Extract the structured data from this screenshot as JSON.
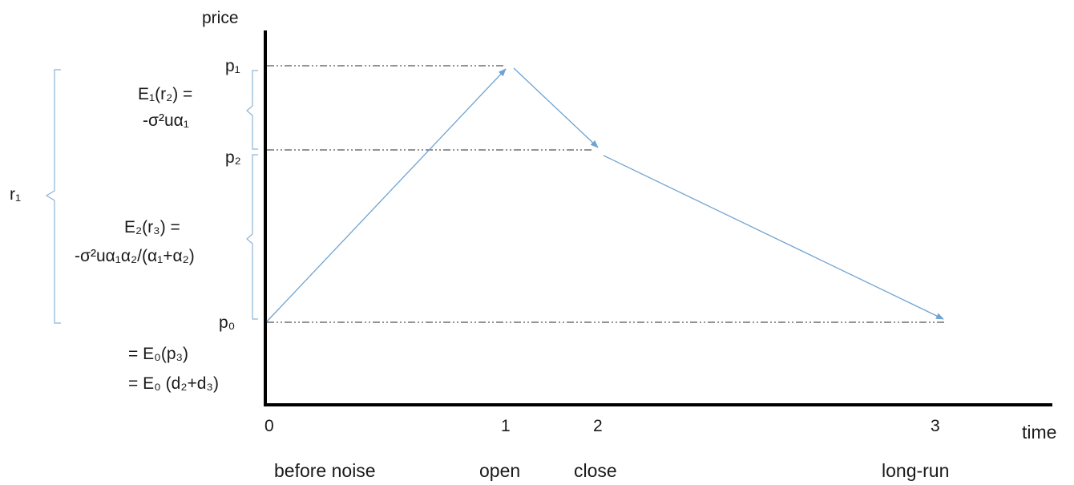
{
  "axes": {
    "y_label": "price",
    "x_label": "time"
  },
  "price_levels": [
    {
      "label": "p₁",
      "id": "p1"
    },
    {
      "label": "p₂",
      "id": "p2"
    },
    {
      "label": "p₀",
      "id": "p0"
    }
  ],
  "time_ticks": [
    {
      "label": "0",
      "stage": "before noise"
    },
    {
      "label": "1",
      "stage": "open"
    },
    {
      "label": "2",
      "stage": "close"
    },
    {
      "label": "3",
      "stage": "long-run"
    }
  ],
  "annotations": {
    "r1": "r₁",
    "e1_line1": "E₁(r₂) =",
    "e1_line2": "-σ²uα₁",
    "e2_line1": "E₂(r₃) =",
    "e2_line2": "-σ²uα₁α₂/(α₁+α₂)",
    "p0_eq1": "= E₀(p₃)",
    "p0_eq2": "= E₀ (d₂+d₃)"
  },
  "colors": {
    "axis": "#000000",
    "path": "#6fa3d0",
    "brace": "#8cb4d8",
    "guide": "#555555"
  }
}
